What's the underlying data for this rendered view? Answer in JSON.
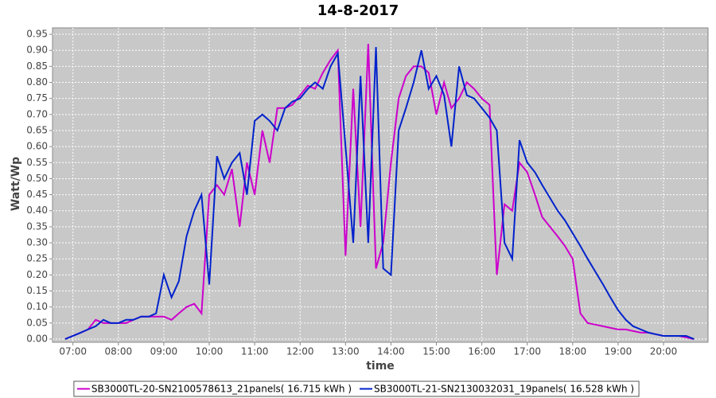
{
  "chart_data": {
    "type": "line",
    "title": "14-8-2017",
    "x_label": "time",
    "y_label": "Watt/Wp",
    "x": [
      6.83,
      7,
      7.17,
      7.33,
      7.5,
      7.67,
      7.83,
      8,
      8.17,
      8.33,
      8.5,
      8.67,
      8.83,
      9,
      9.17,
      9.33,
      9.5,
      9.67,
      9.83,
      10,
      10.17,
      10.33,
      10.5,
      10.67,
      10.83,
      11,
      11.17,
      11.33,
      11.5,
      11.67,
      11.83,
      12,
      12.17,
      12.33,
      12.5,
      12.67,
      12.83,
      13,
      13.17,
      13.33,
      13.5,
      13.67,
      13.83,
      14,
      14.17,
      14.33,
      14.5,
      14.67,
      14.83,
      15,
      15.17,
      15.33,
      15.5,
      15.67,
      15.83,
      16,
      16.17,
      16.33,
      16.5,
      16.67,
      16.83,
      17,
      17.17,
      17.33,
      17.5,
      17.67,
      17.83,
      18,
      18.17,
      18.33,
      18.5,
      18.67,
      18.83,
      19,
      19.17,
      19.33,
      19.5,
      19.67,
      19.83,
      20,
      20.17,
      20.33,
      20.5,
      20.67
    ],
    "series": [
      {
        "name": "SB3000TL-20-SN2100578613_21panels( 16.715 kWh )",
        "color": "#cc00cc",
        "values": [
          0,
          0.01,
          0.02,
          0.03,
          0.06,
          0.05,
          0.05,
          0.05,
          0.05,
          0.06,
          0.07,
          0.07,
          0.07,
          0.07,
          0.06,
          0.08,
          0.1,
          0.11,
          0.08,
          0.45,
          0.48,
          0.45,
          0.53,
          0.35,
          0.55,
          0.45,
          0.65,
          0.55,
          0.72,
          0.72,
          0.73,
          0.76,
          0.79,
          0.78,
          0.83,
          0.87,
          0.9,
          0.26,
          0.78,
          0.35,
          0.92,
          0.22,
          0.3,
          0.55,
          0.75,
          0.82,
          0.85,
          0.85,
          0.83,
          0.7,
          0.8,
          0.72,
          0.75,
          0.8,
          0.78,
          0.75,
          0.73,
          0.2,
          0.42,
          0.4,
          0.55,
          0.52,
          0.45,
          0.38,
          0.35,
          0.32,
          0.29,
          0.25,
          0.08,
          0.05,
          0.045,
          0.04,
          0.035,
          0.03,
          0.03,
          0.025,
          0.02,
          0.02,
          0.015,
          0.01,
          0.01,
          0.01,
          0.005,
          0
        ]
      },
      {
        "name": "SB3000TL-21-SN2130032031_19panels( 16.528 kWh )",
        "color": "#0022cc",
        "values": [
          0,
          0.01,
          0.02,
          0.03,
          0.04,
          0.06,
          0.05,
          0.05,
          0.06,
          0.06,
          0.07,
          0.07,
          0.08,
          0.2,
          0.13,
          0.18,
          0.32,
          0.4,
          0.45,
          0.17,
          0.57,
          0.5,
          0.55,
          0.58,
          0.45,
          0.68,
          0.7,
          0.68,
          0.65,
          0.72,
          0.74,
          0.75,
          0.78,
          0.8,
          0.78,
          0.85,
          0.89,
          0.6,
          0.3,
          0.82,
          0.3,
          0.91,
          0.22,
          0.2,
          0.65,
          0.72,
          0.8,
          0.9,
          0.78,
          0.82,
          0.76,
          0.6,
          0.85,
          0.76,
          0.75,
          0.72,
          0.69,
          0.65,
          0.3,
          0.25,
          0.62,
          0.55,
          0.52,
          0.48,
          0.44,
          0.4,
          0.37,
          0.33,
          0.29,
          0.25,
          0.21,
          0.17,
          0.13,
          0.09,
          0.06,
          0.04,
          0.03,
          0.02,
          0.015,
          0.01,
          0.01,
          0.01,
          0.01,
          0
        ]
      }
    ],
    "xlim": [
      6.55,
      20.98
    ],
    "xticks": [
      {
        "value": 7,
        "label": "07:00"
      },
      {
        "value": 8,
        "label": "08:00"
      },
      {
        "value": 9,
        "label": "09:00"
      },
      {
        "value": 10,
        "label": "10:00"
      },
      {
        "value": 11,
        "label": "11:00"
      },
      {
        "value": 12,
        "label": "12:00"
      },
      {
        "value": 13,
        "label": "13:00"
      },
      {
        "value": 14,
        "label": "14:00"
      },
      {
        "value": 15,
        "label": "15:00"
      },
      {
        "value": 16,
        "label": "16:00"
      },
      {
        "value": 17,
        "label": "17:00"
      },
      {
        "value": 18,
        "label": "18:00"
      },
      {
        "value": 19,
        "label": "19:00"
      },
      {
        "value": 20,
        "label": "20:00"
      }
    ],
    "ylim": [
      -0.01,
      0.97
    ],
    "yticks": [
      {
        "value": 0,
        "label": "0.00"
      },
      0.05,
      {
        "value": 0.1,
        "label": "0.10"
      },
      0.15,
      {
        "value": 0.2,
        "label": "0.20"
      },
      0.25,
      {
        "value": 0.3,
        "label": "0.30"
      },
      0.35,
      {
        "value": 0.4,
        "label": "0.40"
      },
      0.45,
      {
        "value": 0.5,
        "label": "0.50"
      },
      0.55,
      {
        "value": 0.6,
        "label": "0.60"
      },
      0.65,
      {
        "value": 0.7,
        "label": "0.70"
      },
      0.75,
      {
        "value": 0.8,
        "label": "0.80"
      },
      0.85,
      {
        "value": 0.9,
        "label": "0.90"
      },
      0.95
    ],
    "grid": true
  }
}
